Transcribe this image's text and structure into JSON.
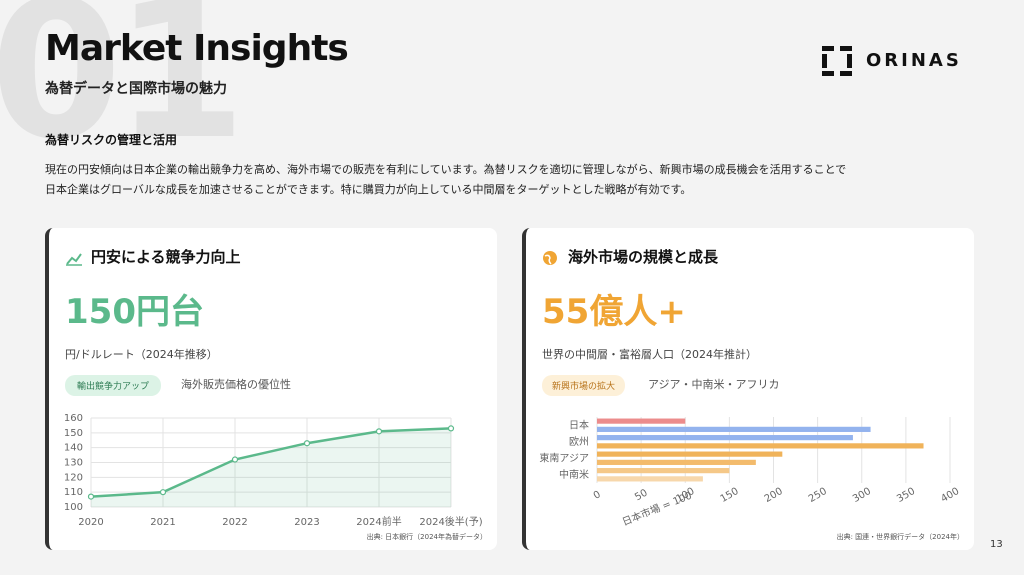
{
  "header": {
    "watermark": "01",
    "title": "Market Insights",
    "subtitle": "為替データと国際市場の魅力",
    "logo": "ORINAS"
  },
  "section": {
    "heading": "為替リスクの管理と活用",
    "body": [
      "現在の円安傾向は日本企業の輸出競争力を高め、海外市場での販売を有利にしています。為替リスクを適切に管理しながら、新興市場の成長機会を活用することで",
      "日本企業はグローバルな成長を加速させることができます。特に購買力が向上している中間層をターゲットとした戦略が有効です。"
    ]
  },
  "cards": [
    {
      "title": "円安による競争力向上",
      "stat": "150円台",
      "stat_label": "円/ドルレート（2024年推移）",
      "tag": "輸出競争力アップ",
      "tag_note": "海外販売価格の優位性",
      "source": "出典: 日本銀行（2024年為替データ）"
    },
    {
      "title": "海外市場の規模と成長",
      "stat": "55億人+",
      "stat_label": "世界の中間層・富裕層人口（2024年推計）",
      "tag": "新興市場の拡大",
      "tag_note": "アジア・中南米・アフリカ",
      "source": "出典: 国連・世界銀行データ（2024年）"
    }
  ],
  "chart_data": [
    {
      "type": "line",
      "categories": [
        "2020",
        "2021",
        "2022",
        "2023",
        "2024前半",
        "2024後半(予)"
      ],
      "values": [
        107,
        110,
        132,
        143,
        151,
        153
      ],
      "color": "#5bb98b",
      "ylim": [
        100,
        160
      ],
      "yticks": [
        100,
        110,
        120,
        130,
        140,
        150,
        160
      ],
      "grid": true,
      "area": true
    },
    {
      "type": "hbar",
      "categories": [
        "日本",
        null,
        "欧州",
        null,
        "東南アジア",
        null,
        "中南米",
        null
      ],
      "values": [
        100,
        310,
        290,
        370,
        210,
        180,
        150,
        120
      ],
      "colors": [
        "#ec8c8c",
        "#93b3ee",
        "#93b3ee",
        "#f0b35a",
        "#f0b35a",
        "#f3bb6c",
        "#f5c888",
        "#f7d7ab"
      ],
      "xlim": [
        0,
        400
      ],
      "xticks": [
        0,
        50,
        100,
        150,
        200,
        250,
        300,
        350,
        400
      ],
      "x_label": "日本市場 = 100",
      "grid": true
    }
  ],
  "page_number": 13
}
